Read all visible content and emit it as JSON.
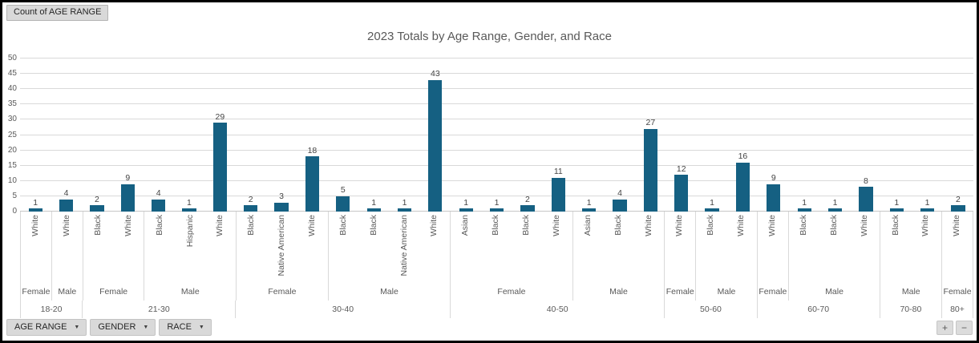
{
  "pivot": {
    "count_button": "Count of AGE RANGE",
    "filters": [
      "AGE RANGE",
      "GENDER",
      "RACE"
    ],
    "expand_label": "+",
    "collapse_label": "−"
  },
  "icons": {
    "dropdown": "▼"
  },
  "colors": {
    "bar": "#156082",
    "gridline": "#d9d9d9",
    "axis_line": "#c6c6c6",
    "label_text": "#595959"
  },
  "chart_data": {
    "type": "bar",
    "title": "2023 Totals by Age Range, Gender, and Race",
    "ylim": [
      0,
      50
    ],
    "yticks": [
      0,
      5,
      10,
      15,
      20,
      25,
      30,
      35,
      40,
      45,
      50
    ],
    "grid": true,
    "legend": false,
    "category_levels": [
      "RACE",
      "GENDER",
      "AGE RANGE"
    ],
    "groups": [
      {
        "age": "18-20",
        "genders": [
          {
            "gender": "Female",
            "bars": [
              {
                "race": "White",
                "value": 1
              }
            ]
          },
          {
            "gender": "Male",
            "bars": [
              {
                "race": "White",
                "value": 4
              }
            ]
          }
        ]
      },
      {
        "age": "21-30",
        "genders": [
          {
            "gender": "Female",
            "bars": [
              {
                "race": "Black",
                "value": 2
              },
              {
                "race": "White",
                "value": 9
              }
            ]
          },
          {
            "gender": "Male",
            "bars": [
              {
                "race": "Black",
                "value": 4
              },
              {
                "race": "Hispanic",
                "value": 1
              },
              {
                "race": "White",
                "value": 29
              }
            ]
          }
        ]
      },
      {
        "age": "30-40",
        "genders": [
          {
            "gender": "Female",
            "bars": [
              {
                "race": "Black",
                "value": 2
              },
              {
                "race": "Native American",
                "value": 3
              },
              {
                "race": "White",
                "value": 18
              }
            ]
          },
          {
            "gender": "Male",
            "bars": [
              {
                "race": "Black",
                "value": 5
              },
              {
                "race": "Black",
                "value": 1
              },
              {
                "race": "Native American",
                "value": 1
              },
              {
                "race": "White",
                "value": 43
              }
            ]
          }
        ]
      },
      {
        "age": "40-50",
        "genders": [
          {
            "gender": "Female",
            "bars": [
              {
                "race": "Asian",
                "value": 1
              },
              {
                "race": "Black",
                "value": 1
              },
              {
                "race": "Black",
                "value": 2
              },
              {
                "race": "White",
                "value": 11
              }
            ]
          },
          {
            "gender": "Male",
            "bars": [
              {
                "race": "Asian",
                "value": 1
              },
              {
                "race": "Black",
                "value": 4
              },
              {
                "race": "White",
                "value": 27
              }
            ]
          }
        ]
      },
      {
        "age": "50-60",
        "genders": [
          {
            "gender": "Female",
            "bars": [
              {
                "race": "White",
                "value": 12
              }
            ]
          },
          {
            "gender": "Male",
            "bars": [
              {
                "race": "Black",
                "value": 1
              },
              {
                "race": "White",
                "value": 16
              }
            ]
          }
        ]
      },
      {
        "age": "60-70",
        "genders": [
          {
            "gender": "Female",
            "bars": [
              {
                "race": "White",
                "value": 9
              }
            ]
          },
          {
            "gender": "Male",
            "bars": [
              {
                "race": "Black",
                "value": 1
              },
              {
                "race": "Black",
                "value": 1
              },
              {
                "race": "White",
                "value": 8
              }
            ]
          }
        ]
      },
      {
        "age": "70-80",
        "genders": [
          {
            "gender": "Male",
            "bars": [
              {
                "race": "Black",
                "value": 1
              },
              {
                "race": "White",
                "value": 1
              }
            ]
          }
        ]
      },
      {
        "age": "80+",
        "genders": [
          {
            "gender": "Female",
            "bars": [
              {
                "race": "White",
                "value": 2
              }
            ]
          }
        ]
      }
    ]
  }
}
